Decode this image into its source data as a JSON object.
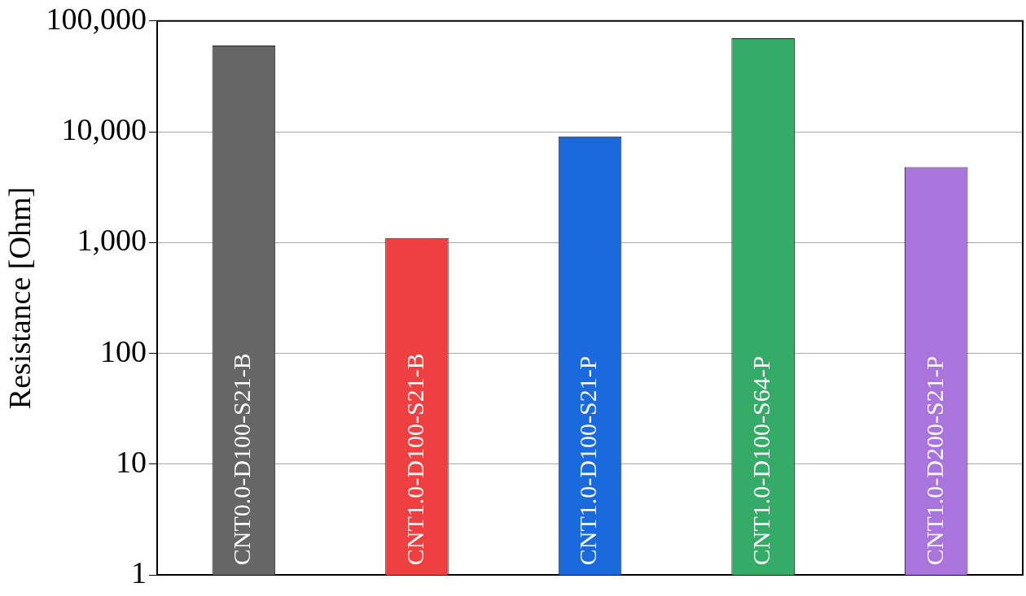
{
  "chart_data": {
    "type": "bar",
    "ylabel": "Resistance [Ohm]",
    "categories": [
      "CNT0.0-D100-S21-B",
      "CNT1.0-D100-S21-B",
      "CNT1.0-D100-S21-P",
      "CNT1.0-D100-S64-P",
      "CNT1.0-D200-S21-P"
    ],
    "values": [
      60000,
      1100,
      9100,
      70000,
      4800
    ],
    "colors": [
      "#666666",
      "#ee4040",
      "#1a6ade",
      "#35ab68",
      "#a974dc"
    ],
    "log": "y",
    "ylim": [
      1,
      100000
    ],
    "yticks": [
      {
        "value": 1,
        "label": "1"
      },
      {
        "value": 10,
        "label": "10"
      },
      {
        "value": 100,
        "label": "100"
      },
      {
        "value": 1000,
        "label": "1,000"
      },
      {
        "value": 10000,
        "label": "10,000"
      },
      {
        "value": 100000,
        "label": "100,000"
      }
    ],
    "grid": "y",
    "legend": false,
    "tick_labels": "y"
  }
}
